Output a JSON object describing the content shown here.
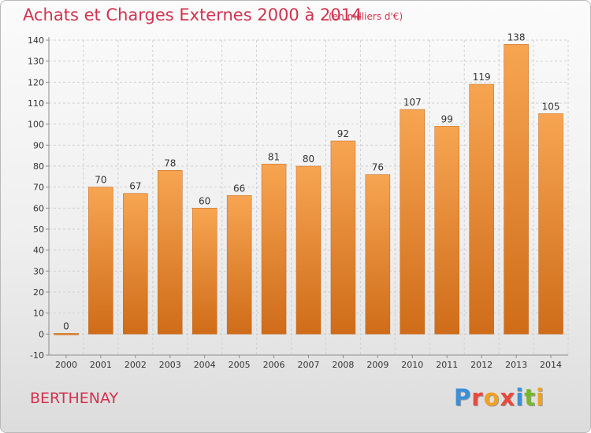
{
  "title": "Achats et Charges Externes 2000 à 2014",
  "unit_note": "(en milliers d'€)",
  "commune": "BERTHENAY",
  "logo": {
    "text": "Proxiti",
    "letters": [
      {
        "ch": "P",
        "color": "#3b8fd9"
      },
      {
        "ch": "r",
        "color": "#e84a3c"
      },
      {
        "ch": "o",
        "color": "#f2a121"
      },
      {
        "ch": "x",
        "color": "#e84a3c"
      },
      {
        "ch": "i",
        "color": "#3b8fd9"
      },
      {
        "ch": "t",
        "color": "#76b82a"
      },
      {
        "ch": "i",
        "color": "#f2a121"
      }
    ]
  },
  "colors": {
    "title": "#d2334f",
    "bar_light": "#f7a552",
    "bar_dark": "#cf6c19",
    "grid": "#cfcfcf",
    "axis": "#8c8c8c",
    "label": "#333333"
  },
  "chart_data": {
    "type": "bar",
    "title": "Achats et Charges Externes 2000 à 2014",
    "subtitle": "(en milliers d'€)",
    "xlabel": "",
    "ylabel": "",
    "categories": [
      "2000",
      "2001",
      "2002",
      "2003",
      "2004",
      "2005",
      "2006",
      "2007",
      "2008",
      "2009",
      "2010",
      "2011",
      "2012",
      "2013",
      "2014"
    ],
    "values": [
      0,
      70,
      67,
      78,
      60,
      66,
      81,
      80,
      92,
      76,
      107,
      99,
      119,
      138,
      105
    ],
    "value_labels": [
      "0",
      "70",
      "67",
      "78",
      "60",
      "66",
      "81",
      "80",
      "92",
      "76",
      "107",
      "99",
      "119",
      "138",
      "105"
    ],
    "ylim": [
      -10,
      140
    ],
    "yticks": [
      -10,
      0,
      10,
      20,
      30,
      40,
      50,
      60,
      70,
      80,
      90,
      100,
      110,
      120,
      130,
      140
    ],
    "grid": true,
    "legend": "none"
  }
}
